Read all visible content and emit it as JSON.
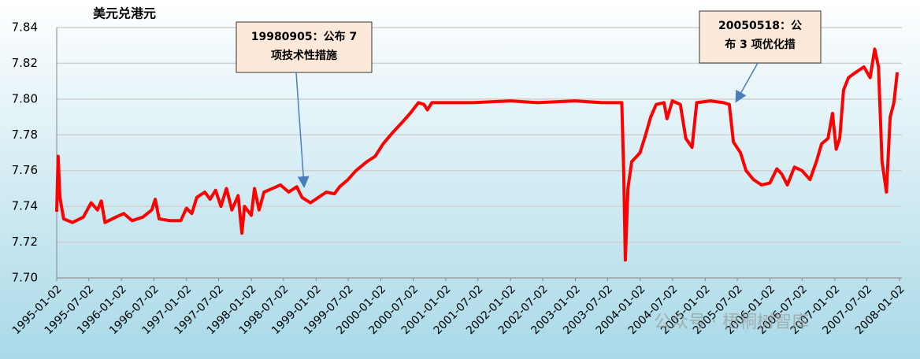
{
  "chart_data": {
    "type": "line",
    "title": "美元兑港元",
    "x": [
      "1995-01-02",
      "1995-01-10",
      "1995-01-20",
      "1995-02-10",
      "1995-04-01",
      "1995-06-01",
      "1995-07-15",
      "1995-08-20",
      "1995-09-10",
      "1995-10-01",
      "1995-12-01",
      "1996-01-15",
      "1996-03-01",
      "1996-05-01",
      "1996-06-20",
      "1996-07-10",
      "1996-08-01",
      "1996-10-01",
      "1996-12-01",
      "1997-01-02",
      "1997-02-01",
      "1997-03-01",
      "1997-04-15",
      "1997-05-15",
      "1997-06-15",
      "1997-07-15",
      "1997-08-15",
      "1997-09-15",
      "1997-10-20",
      "1997-11-10",
      "1997-11-25",
      "1998-01-02",
      "1998-01-20",
      "1998-02-15",
      "1998-03-15",
      "1998-05-01",
      "1998-06-15",
      "1998-08-01",
      "1998-09-15",
      "1998-10-15",
      "1998-12-01",
      "1999-01-15",
      "1999-03-01",
      "1999-04-15",
      "1999-05-15",
      "1999-07-01",
      "1999-08-15",
      "1999-10-15",
      "1999-12-01",
      "2000-01-15",
      "2000-03-15",
      "2000-05-01",
      "2000-06-15",
      "2000-08-01",
      "2000-09-01",
      "2000-09-20",
      "2000-10-15",
      "2001-06-01",
      "2002-01-01",
      "2002-06-01",
      "2003-01-01",
      "2003-06-01",
      "2003-09-20",
      "2003-10-01",
      "2003-10-10",
      "2003-10-25",
      "2003-11-15",
      "2004-01-01",
      "2004-02-01",
      "2004-03-01",
      "2004-04-01",
      "2004-05-15",
      "2004-06-01",
      "2004-07-01",
      "2004-08-15",
      "2004-09-15",
      "2004-10-20",
      "2004-11-15",
      "2005-02-01",
      "2005-04-15",
      "2005-05-18",
      "2005-06-10",
      "2005-07-20",
      "2005-08-20",
      "2005-10-01",
      "2005-11-15",
      "2006-01-01",
      "2006-02-10",
      "2006-03-10",
      "2006-04-10",
      "2006-05-20",
      "2006-07-01",
      "2006-08-15",
      "2006-09-20",
      "2006-10-20",
      "2006-11-25",
      "2006-12-20",
      "2007-01-10",
      "2007-01-30",
      "2007-02-20",
      "2007-03-20",
      "2007-05-01",
      "2007-06-15",
      "2007-07-20",
      "2007-08-15",
      "2007-09-05",
      "2007-09-25",
      "2007-10-20",
      "2007-11-10",
      "2007-12-01",
      "2007-12-20"
    ],
    "series": [
      {
        "color": "#ff0000",
        "values": [
          7.737,
          7.768,
          7.745,
          7.733,
          7.731,
          7.734,
          7.742,
          7.738,
          7.743,
          7.731,
          7.734,
          7.736,
          7.732,
          7.734,
          7.738,
          7.744,
          7.733,
          7.732,
          7.732,
          7.739,
          7.736,
          7.745,
          7.748,
          7.744,
          7.749,
          7.74,
          7.75,
          7.738,
          7.746,
          7.725,
          7.74,
          7.735,
          7.75,
          7.738,
          7.748,
          7.75,
          7.752,
          7.748,
          7.751,
          7.745,
          7.742,
          7.745,
          7.748,
          7.747,
          7.751,
          7.755,
          7.76,
          7.765,
          7.768,
          7.775,
          7.782,
          7.787,
          7.792,
          7.798,
          7.797,
          7.794,
          7.798,
          7.798,
          7.799,
          7.798,
          7.799,
          7.798,
          7.798,
          7.76,
          7.71,
          7.75,
          7.765,
          7.77,
          7.78,
          7.79,
          7.797,
          7.798,
          7.789,
          7.799,
          7.797,
          7.778,
          7.773,
          7.798,
          7.799,
          7.798,
          7.797,
          7.776,
          7.77,
          7.76,
          7.755,
          7.752,
          7.753,
          7.761,
          7.758,
          7.752,
          7.762,
          7.76,
          7.755,
          7.765,
          7.775,
          7.778,
          7.792,
          7.772,
          7.778,
          7.805,
          7.812,
          7.815,
          7.818,
          7.812,
          7.828,
          7.818,
          7.765,
          7.748,
          7.79,
          7.798,
          7.815
        ]
      }
    ],
    "xlim": [
      "1995-01-02",
      "2008-01-15"
    ],
    "xticks": [
      "1995-01-02",
      "1995-07-02",
      "1996-01-02",
      "1996-07-02",
      "1997-01-02",
      "1997-07-02",
      "1998-01-02",
      "1998-07-02",
      "1999-01-02",
      "1999-07-02",
      "2000-01-02",
      "2000-07-02",
      "2001-01-02",
      "2001-07-02",
      "2002-01-02",
      "2002-07-02",
      "2003-01-02",
      "2003-07-02",
      "2004-01-02",
      "2004-07-02",
      "2005-01-02",
      "2005-07-02",
      "2006-01-02",
      "2006-07-02",
      "2007-01-02",
      "2007-07-02",
      "2008-01-02"
    ],
    "ylim": [
      7.7,
      7.84
    ],
    "yticks": [
      {
        "value": 7.7,
        "label": "7.70"
      },
      7.72,
      7.74,
      7.76,
      7.78,
      {
        "value": 7.8,
        "label": "7.80"
      },
      7.82,
      7.84
    ],
    "grid": true,
    "annotations": [
      {
        "lines": [
          "19980905：公布 7",
          "项技术性措施"
        ]
      },
      {
        "lines": [
          "20050518：公",
          "布 3 项优化措"
        ]
      }
    ],
    "watermark": "公众号 · 梧桐树智库"
  }
}
